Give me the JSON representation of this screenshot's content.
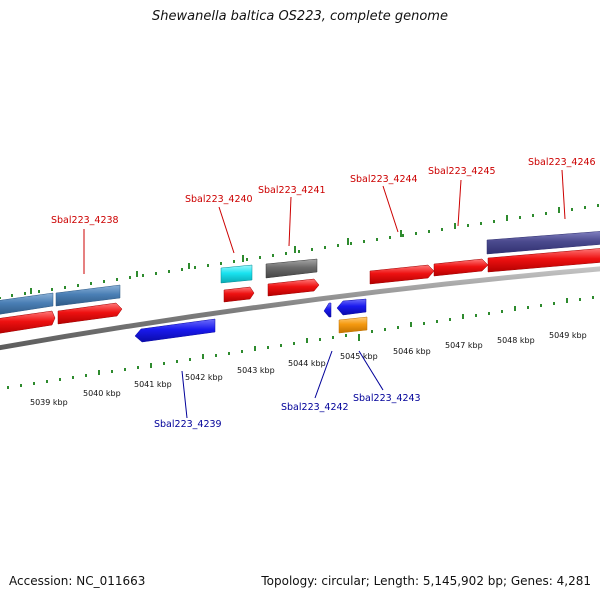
{
  "title": "Shewanella baltica OS223, complete genome",
  "footer": {
    "accession": "Accession: NC_011663",
    "topology": "Topology: circular; Length: 5,145,902 bp; Genes: 4,281"
  },
  "colors": {
    "forward_label": "#cc0000",
    "reverse_label": "#000099",
    "tick": "#2e8b2e",
    "backbone": "#808080"
  },
  "scale_labels": [
    "5039 kbp",
    "5040 kbp",
    "5041 kbp",
    "5042 kbp",
    "5043 kbp",
    "5044 kbp",
    "5045 kbp",
    "5046 kbp",
    "5047 kbp",
    "5048 kbp",
    "5049 kbp"
  ],
  "gene_labels": [
    {
      "name": "Sbal223_4238",
      "strand": "forward"
    },
    {
      "name": "Sbal223_4240",
      "strand": "forward"
    },
    {
      "name": "Sbal223_4241",
      "strand": "forward"
    },
    {
      "name": "Sbal223_4244",
      "strand": "forward"
    },
    {
      "name": "Sbal223_4245",
      "strand": "forward"
    },
    {
      "name": "Sbal223_4246",
      "strand": "forward"
    },
    {
      "name": "Sbal223_4239",
      "strand": "reverse"
    },
    {
      "name": "Sbal223_4242",
      "strand": "reverse"
    },
    {
      "name": "Sbal223_4243",
      "strand": "reverse"
    }
  ],
  "features": [
    {
      "name": "feature-forward-red",
      "color": "#ee1111"
    },
    {
      "name": "feature-forward-steelblue",
      "color": "#4a7fb5"
    },
    {
      "name": "feature-forward-cyan",
      "color": "#19e3f0"
    },
    {
      "name": "feature-forward-gray",
      "color": "#6b6b6b"
    },
    {
      "name": "feature-forward-slate",
      "color": "#4b4a8e"
    },
    {
      "name": "feature-reverse-blue",
      "color": "#1a1aee"
    },
    {
      "name": "feature-reverse-orange",
      "color": "#f59a10"
    }
  ]
}
